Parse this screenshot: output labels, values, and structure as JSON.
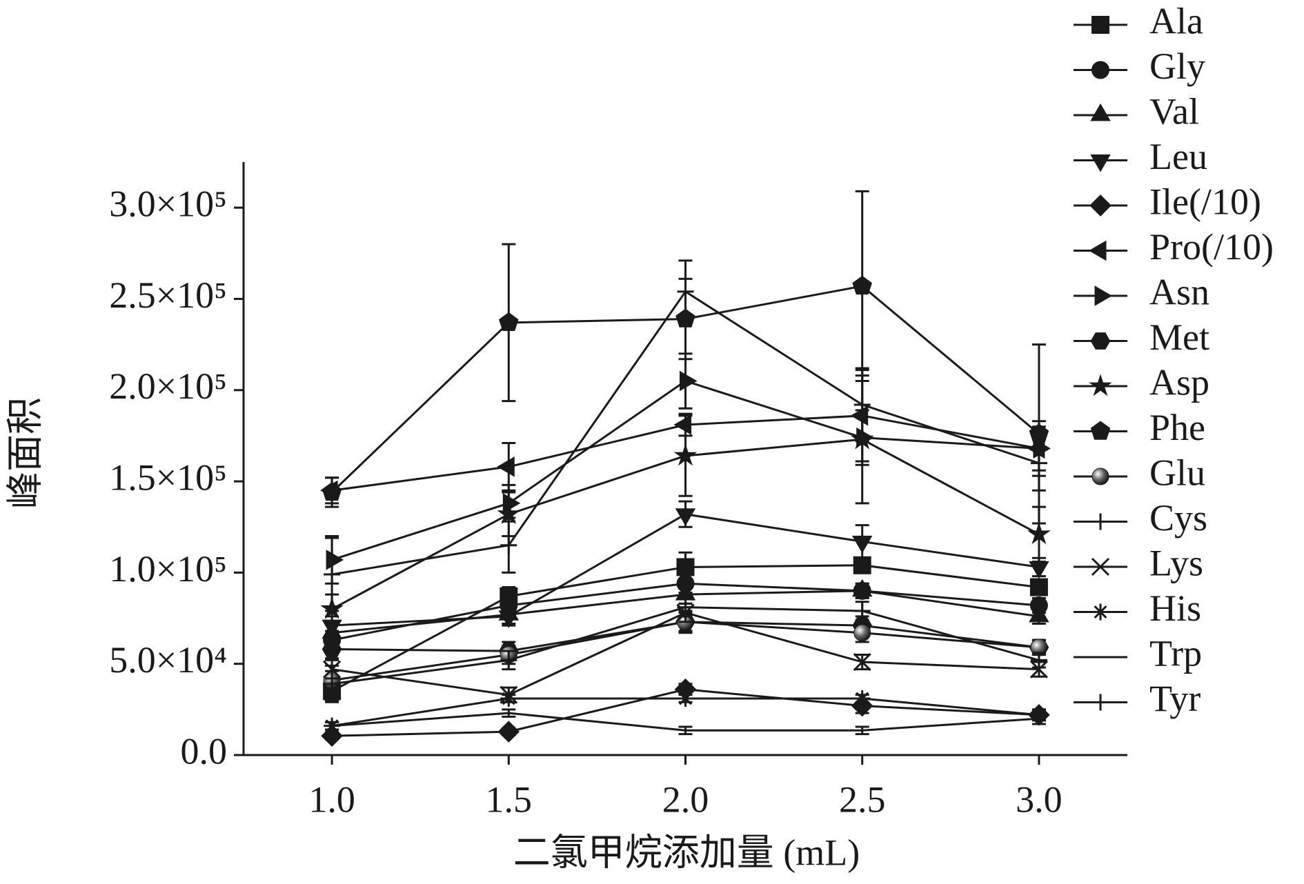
{
  "chart_data": {
    "type": "line",
    "x_label": "二氯甲烷添加量 (mL)",
    "y_label": "峰面积",
    "x": [
      1.0,
      1.5,
      2.0,
      2.5,
      3.0
    ],
    "xlim": [
      0.75,
      3.25
    ],
    "xticks": [
      {
        "value": 1.0,
        "label": "1.0"
      },
      {
        "value": 1.5,
        "label": "1.5"
      },
      {
        "value": 2.0,
        "label": "2.0"
      },
      {
        "value": 2.5,
        "label": "2.5"
      },
      {
        "value": 3.0,
        "label": "3.0"
      }
    ],
    "ylim": [
      0,
      325000
    ],
    "yticks": [
      {
        "value": 0,
        "label": "0.0"
      },
      {
        "value": 50000,
        "label": "5.0×10⁴"
      },
      {
        "value": 100000,
        "label": "1.0×10⁵"
      },
      {
        "value": 150000,
        "label": "1.5×10⁵"
      },
      {
        "value": 200000,
        "label": "2.0×10⁵"
      },
      {
        "value": 250000,
        "label": "2.5×10⁵"
      },
      {
        "value": 300000,
        "label": "3.0×10⁵"
      }
    ],
    "legend_position": "outside-right",
    "series": [
      {
        "name": "Ala",
        "color": "#1a1a1a",
        "marker": "square",
        "values": [
          35000,
          87000,
          103000,
          104000,
          92000
        ],
        "errors": [
          5000,
          5000,
          8000,
          4000,
          4000
        ]
      },
      {
        "name": "Gly",
        "color": "#1a1a1a",
        "marker": "circle",
        "values": [
          63000,
          82000,
          94000,
          90000,
          82000
        ],
        "errors": [
          5000,
          5000,
          5000,
          4000,
          4000
        ]
      },
      {
        "name": "Val",
        "color": "#1a1a1a",
        "marker": "triangle-up",
        "values": [
          67000,
          77000,
          88000,
          90000,
          76000
        ],
        "errors": [
          5000,
          5000,
          5000,
          4000,
          4000
        ]
      },
      {
        "name": "Leu",
        "color": "#1a1a1a",
        "marker": "triangle-down",
        "values": [
          71000,
          76000,
          132000,
          117000,
          103000
        ],
        "errors": [
          5000,
          5000,
          7000,
          9000,
          5000
        ]
      },
      {
        "name": "Ile(/10)",
        "color": "#1a1a1a",
        "marker": "diamond",
        "values": [
          10500,
          12800,
          36000,
          27000,
          22000
        ],
        "errors": [
          2000,
          2000,
          3000,
          4000,
          3000
        ]
      },
      {
        "name": "Pro(/10)",
        "color": "#1a1a1a",
        "marker": "triangle-left",
        "values": [
          145000,
          158000,
          181000,
          186000,
          168000
        ],
        "errors": [
          7000,
          13000,
          6000,
          25000,
          15000
        ]
      },
      {
        "name": "Asn",
        "color": "#1a1a1a",
        "marker": "triangle-right",
        "values": [
          107000,
          138000,
          205000,
          174000,
          168000
        ],
        "errors": [
          13000,
          10000,
          15000,
          15000,
          12000
        ]
      },
      {
        "name": "Met",
        "color": "#1a1a1a",
        "marker": "hexagon",
        "values": [
          58000,
          57000,
          73000,
          71000,
          59000
        ],
        "errors": [
          5000,
          5000,
          5000,
          5000,
          4000
        ]
      },
      {
        "name": "Asp",
        "color": "#1a1a1a",
        "marker": "star",
        "values": [
          80000,
          132000,
          164000,
          173000,
          121000
        ],
        "errors": [
          8000,
          12000,
          22000,
          35000,
          15000
        ]
      },
      {
        "name": "Phe",
        "color": "#1a1a1a",
        "marker": "pentagon",
        "values": [
          144000,
          237000,
          239000,
          257000,
          176000
        ],
        "errors": [
          8000,
          43000,
          22000,
          52000,
          49000
        ]
      },
      {
        "name": "Glu",
        "color": "#1a1a1a",
        "marker": "sphere",
        "values": [
          41000,
          55000,
          73000,
          67000,
          59000
        ],
        "errors": [
          5000,
          5000,
          6000,
          5000,
          4000
        ]
      },
      {
        "name": "Cys",
        "color": "#1a1a1a",
        "marker": "plus",
        "values": [
          99000,
          115000,
          254000,
          192000,
          160000
        ],
        "errors": [
          20000,
          15000,
          17000,
          20000,
          15000
        ]
      },
      {
        "name": "Lys",
        "color": "#1a1a1a",
        "marker": "x",
        "values": [
          47000,
          33000,
          78000,
          51000,
          47000
        ],
        "errors": [
          5000,
          4000,
          5000,
          4000,
          4000
        ]
      },
      {
        "name": "His",
        "color": "#1a1a1a",
        "marker": "asterisk",
        "values": [
          16000,
          31000,
          31000,
          31000,
          22000
        ],
        "errors": [
          2000,
          2000,
          2000,
          2000,
          3000
        ]
      },
      {
        "name": "Trp",
        "color": "#1a1a1a",
        "marker": "none",
        "values": [
          16000,
          23000,
          13500,
          13500,
          20000
        ],
        "errors": [
          2000,
          2000,
          2000,
          2000,
          3000
        ]
      },
      {
        "name": "Tyr",
        "color": "#1a1a1a",
        "marker": "plus",
        "values": [
          39000,
          52000,
          81000,
          79000,
          52000
        ],
        "errors": [
          10000,
          5000,
          5000,
          5000,
          4000
        ]
      }
    ]
  }
}
